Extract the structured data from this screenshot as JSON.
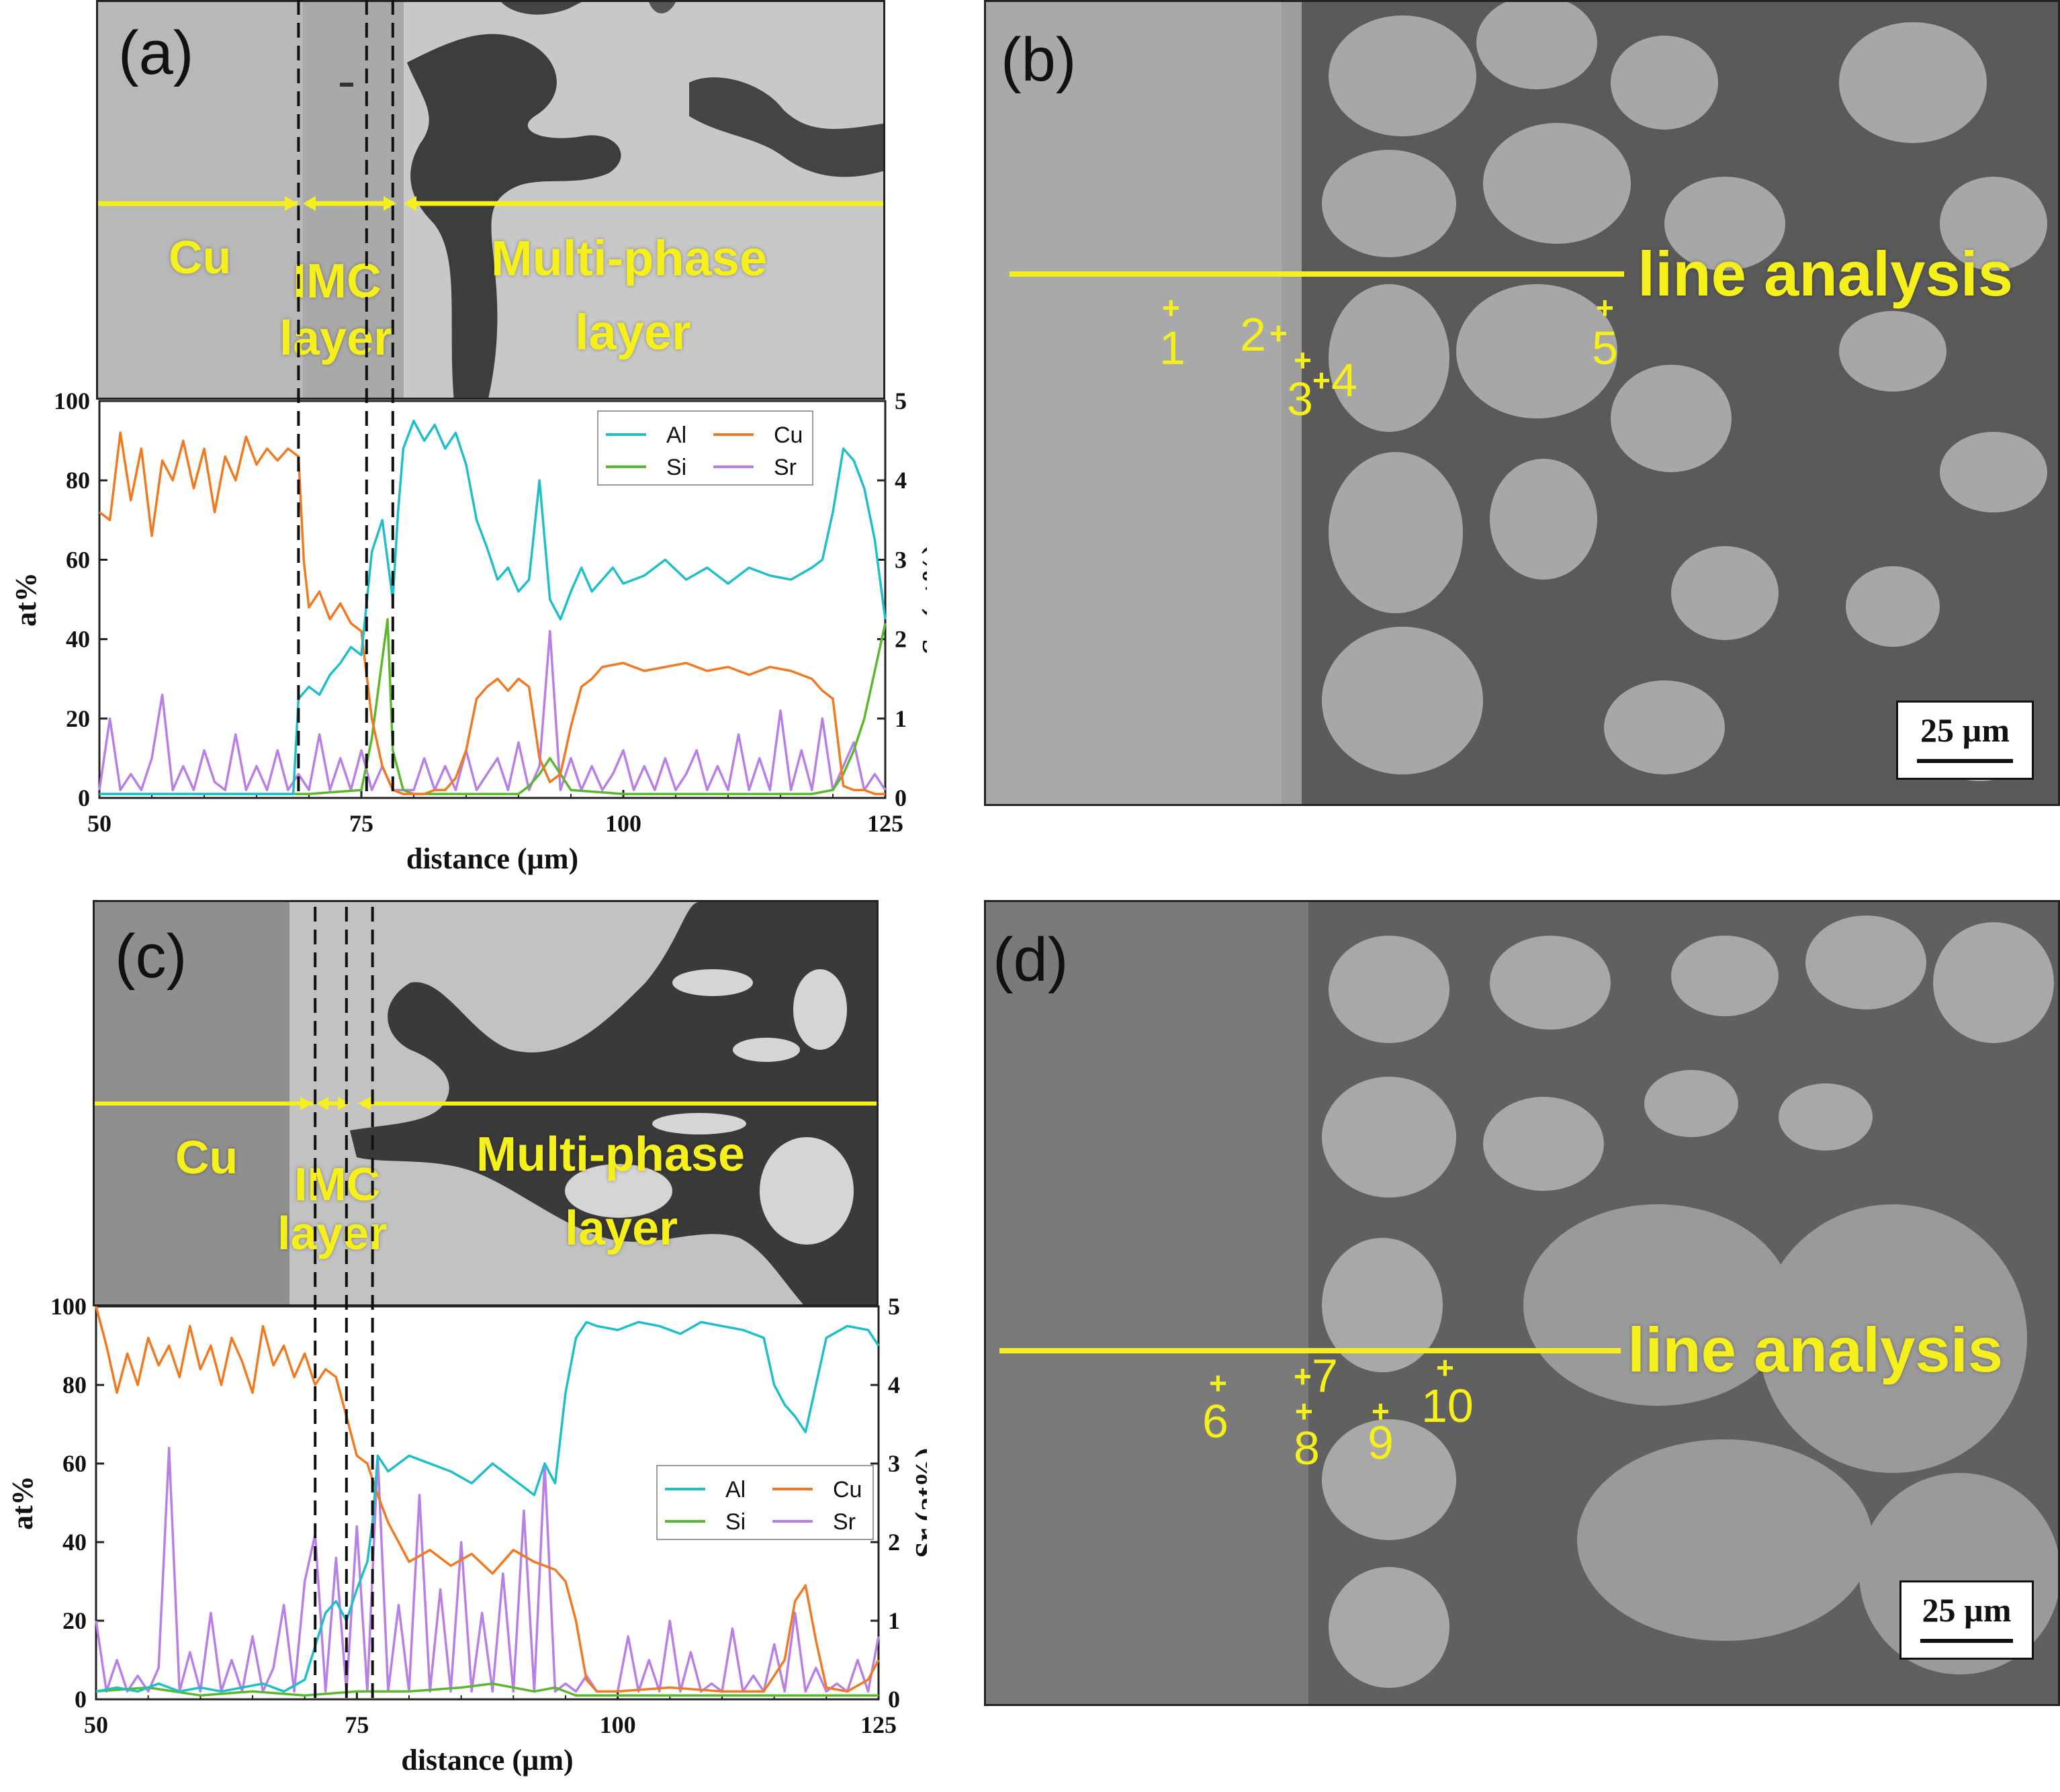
{
  "panels": {
    "a": {
      "tag": "(a)",
      "labels": {
        "cu": "Cu",
        "imc1": "IMC",
        "imc2": "layer",
        "mp1": "Multi-phase",
        "mp2": "layer"
      }
    },
    "b": {
      "tag": "(b)",
      "line_label": "line analysis",
      "points": [
        "1",
        "2",
        "3",
        "4",
        "5"
      ],
      "scalebar": "25 µm"
    },
    "c": {
      "tag": "(c)",
      "labels": {
        "cu": "Cu",
        "imc1": "IMC",
        "imc2": "layer",
        "mp1": "Multi-phase",
        "mp2": "layer"
      }
    },
    "d": {
      "tag": "(d)",
      "line_label": "line analysis",
      "points": [
        "6",
        "7",
        "8",
        "9",
        "10"
      ],
      "scalebar": "25 µm"
    }
  },
  "colors": {
    "Al": "#1fbfc8",
    "Cu": "#f07a22",
    "Si": "#5bb82e",
    "Sr": "#b87fe6",
    "annotation": "#f5ef1c"
  },
  "chart_data": [
    {
      "id": "a",
      "type": "line",
      "xlabel": "distance (µm)",
      "ylabel": "at%",
      "y2label": "Sr (at%)",
      "xlim": [
        50,
        125
      ],
      "ylim": [
        0,
        100
      ],
      "y2lim": [
        0,
        5
      ],
      "xticks": [
        50,
        75,
        100,
        125
      ],
      "yticks": [
        0,
        20,
        40,
        60,
        80,
        100
      ],
      "y2ticks": [
        0,
        1,
        2,
        3,
        4,
        5
      ],
      "legend": [
        "Al",
        "Cu",
        "Si",
        "Sr"
      ],
      "legend_position": "top-right",
      "boundaries": [
        69,
        75.5,
        78
      ],
      "series": [
        {
          "name": "Al",
          "axis": "left",
          "x": [
            50,
            55,
            60,
            65,
            68.5,
            69,
            70,
            71,
            72,
            73,
            74,
            75,
            76,
            77,
            78,
            78.5,
            79,
            80,
            81,
            82,
            83,
            84,
            85,
            86,
            87,
            88,
            89,
            90,
            91,
            92,
            93,
            94,
            95,
            96,
            97,
            98,
            99,
            100,
            102,
            104,
            106,
            108,
            110,
            112,
            114,
            116,
            118,
            119,
            120,
            121,
            122,
            123,
            124,
            125
          ],
          "y": [
            1,
            1,
            1,
            1,
            1,
            25,
            28,
            26,
            31,
            34,
            38,
            36,
            62,
            70,
            50,
            72,
            88,
            95,
            90,
            94,
            88,
            92,
            84,
            70,
            63,
            55,
            58,
            52,
            55,
            80,
            50,
            45,
            52,
            58,
            52,
            55,
            58,
            54,
            56,
            60,
            55,
            58,
            54,
            58,
            56,
            55,
            58,
            60,
            72,
            88,
            85,
            78,
            65,
            45
          ]
        },
        {
          "name": "Cu",
          "axis": "left",
          "x": [
            50,
            51,
            52,
            53,
            54,
            55,
            56,
            57,
            58,
            59,
            60,
            61,
            62,
            63,
            64,
            65,
            66,
            67,
            68,
            69,
            69.5,
            70,
            71,
            72,
            73,
            74,
            75,
            76,
            77,
            78,
            79,
            80,
            81,
            82,
            83,
            84,
            85,
            86,
            87,
            88,
            89,
            90,
            91,
            92,
            93,
            94,
            95,
            96,
            97,
            98,
            100,
            102,
            104,
            106,
            108,
            110,
            112,
            114,
            116,
            118,
            119,
            120,
            121,
            122,
            123,
            124,
            125
          ],
          "y": [
            72,
            70,
            92,
            75,
            88,
            66,
            85,
            80,
            90,
            78,
            88,
            72,
            86,
            80,
            91,
            84,
            88,
            85,
            88,
            86,
            60,
            48,
            52,
            45,
            49,
            44,
            42,
            20,
            8,
            2,
            1,
            1,
            1,
            2,
            2,
            5,
            12,
            25,
            28,
            30,
            27,
            30,
            28,
            10,
            4,
            6,
            18,
            28,
            30,
            33,
            34,
            32,
            33,
            34,
            32,
            33,
            31,
            33,
            32,
            30,
            27,
            25,
            3,
            2,
            2,
            1,
            1
          ]
        },
        {
          "name": "Si",
          "axis": "left",
          "x": [
            50,
            60,
            70,
            75,
            76,
            77,
            77.5,
            78,
            79,
            80,
            90,
            91,
            92,
            93,
            94,
            95,
            100,
            110,
            118,
            120,
            121,
            122,
            123,
            124,
            125
          ],
          "y": [
            1,
            1,
            1,
            2,
            15,
            35,
            45,
            12,
            2,
            1,
            1,
            3,
            6,
            10,
            6,
            2,
            1,
            1,
            1,
            2,
            6,
            12,
            20,
            32,
            44
          ]
        },
        {
          "name": "Sr",
          "axis": "right",
          "x": [
            50,
            51,
            52,
            53,
            54,
            55,
            56,
            57,
            58,
            59,
            60,
            61,
            62,
            63,
            64,
            65,
            66,
            67,
            68,
            69,
            70,
            71,
            72,
            73,
            74,
            75,
            76,
            77,
            78,
            79,
            80,
            81,
            82,
            83,
            84,
            85,
            86,
            87,
            88,
            89,
            90,
            91,
            92,
            93,
            94,
            95,
            96,
            97,
            98,
            99,
            100,
            101,
            102,
            103,
            104,
            105,
            106,
            107,
            108,
            109,
            110,
            111,
            112,
            113,
            114,
            115,
            116,
            117,
            118,
            119,
            120,
            121,
            122,
            123,
            124,
            125
          ],
          "y": [
            0.1,
            1.0,
            0.1,
            0.3,
            0.1,
            0.5,
            1.3,
            0.1,
            0.4,
            0.1,
            0.6,
            0.2,
            0.1,
            0.8,
            0.1,
            0.4,
            0.1,
            0.6,
            0.1,
            0.3,
            0.1,
            0.8,
            0.1,
            0.5,
            0.1,
            0.6,
            0.1,
            0.4,
            0.1,
            0.1,
            0.1,
            0.5,
            0.1,
            0.4,
            0.1,
            0.6,
            0.1,
            0.3,
            0.5,
            0.1,
            0.7,
            0.1,
            0.4,
            2.1,
            0.1,
            0.5,
            0.1,
            0.4,
            0.1,
            0.3,
            0.6,
            0.1,
            0.4,
            0.1,
            0.5,
            0.1,
            0.3,
            0.6,
            0.1,
            0.4,
            0.1,
            0.8,
            0.1,
            0.5,
            0.1,
            1.1,
            0.1,
            0.6,
            0.1,
            1.0,
            0.1,
            0.4,
            0.7,
            0.1,
            0.3,
            0.1
          ]
        }
      ]
    },
    {
      "id": "c",
      "type": "line",
      "xlabel": "distance (µm)",
      "ylabel": "at%",
      "y2label": "Sr (at%)",
      "xlim": [
        50,
        125
      ],
      "ylim": [
        0,
        100
      ],
      "y2lim": [
        0,
        5
      ],
      "xticks": [
        50,
        75,
        100,
        125
      ],
      "yticks": [
        0,
        20,
        40,
        60,
        80,
        100
      ],
      "y2ticks": [
        0,
        1,
        2,
        3,
        4,
        5
      ],
      "legend": [
        "Al",
        "Cu",
        "Si",
        "Sr"
      ],
      "legend_position": "right",
      "boundaries": [
        71,
        74,
        76.5
      ],
      "series": [
        {
          "name": "Al",
          "axis": "left",
          "x": [
            50,
            52,
            54,
            56,
            58,
            60,
            62,
            64,
            66,
            68,
            70,
            72,
            73,
            74,
            75,
            76,
            76.5,
            77,
            78,
            80,
            82,
            84,
            86,
            88,
            90,
            92,
            93,
            94,
            95,
            96,
            97,
            98,
            100,
            102,
            104,
            106,
            108,
            110,
            112,
            114,
            115,
            116,
            117,
            118,
            119,
            120,
            122,
            124,
            125
          ],
          "y": [
            2,
            3,
            2,
            4,
            2,
            3,
            2,
            3,
            4,
            2,
            5,
            22,
            25,
            20,
            28,
            35,
            45,
            62,
            58,
            62,
            60,
            58,
            55,
            60,
            56,
            52,
            60,
            55,
            78,
            92,
            96,
            95,
            94,
            96,
            95,
            93,
            96,
            95,
            94,
            92,
            80,
            75,
            72,
            68,
            80,
            92,
            95,
            94,
            90
          ]
        },
        {
          "name": "Cu",
          "axis": "left",
          "x": [
            50,
            51,
            52,
            53,
            54,
            55,
            56,
            57,
            58,
            59,
            60,
            61,
            62,
            63,
            64,
            65,
            66,
            67,
            68,
            69,
            70,
            71,
            72,
            73,
            74,
            75,
            76,
            77,
            78,
            79,
            80,
            82,
            84,
            86,
            88,
            90,
            92,
            94,
            95,
            96,
            97,
            98,
            100,
            105,
            110,
            114,
            116,
            117,
            118,
            119,
            120,
            122,
            124,
            125
          ],
          "y": [
            100,
            90,
            78,
            88,
            80,
            92,
            85,
            90,
            82,
            95,
            84,
            90,
            80,
            92,
            86,
            78,
            95,
            85,
            90,
            82,
            88,
            80,
            84,
            82,
            72,
            62,
            60,
            52,
            45,
            40,
            35,
            38,
            34,
            37,
            32,
            38,
            35,
            33,
            30,
            20,
            5,
            2,
            2,
            3,
            2,
            2,
            10,
            25,
            29,
            15,
            3,
            2,
            5,
            10
          ]
        },
        {
          "name": "Si",
          "axis": "left",
          "x": [
            50,
            55,
            60,
            65,
            70,
            75,
            80,
            85,
            88,
            90,
            92,
            94,
            96,
            100,
            110,
            120,
            125
          ],
          "y": [
            2,
            3,
            1,
            2,
            1,
            2,
            2,
            3,
            4,
            3,
            2,
            3,
            1,
            1,
            1,
            1,
            1
          ]
        },
        {
          "name": "Sr",
          "axis": "right",
          "x": [
            50,
            51,
            52,
            53,
            54,
            55,
            56,
            57,
            58,
            59,
            60,
            61,
            62,
            63,
            64,
            65,
            66,
            67,
            68,
            69,
            70,
            71,
            72,
            73,
            74,
            75,
            76,
            77,
            78,
            79,
            80,
            81,
            82,
            83,
            84,
            85,
            86,
            87,
            88,
            89,
            90,
            91,
            92,
            93,
            94,
            95,
            96,
            97,
            98,
            99,
            100,
            101,
            102,
            103,
            104,
            105,
            106,
            107,
            108,
            109,
            110,
            111,
            112,
            113,
            114,
            115,
            116,
            117,
            118,
            119,
            120,
            121,
            122,
            123,
            124,
            125
          ],
          "y": [
            1.0,
            0.1,
            0.5,
            0.1,
            0.3,
            0.1,
            0.4,
            3.2,
            0.1,
            0.6,
            0.1,
            1.1,
            0.1,
            0.5,
            0.1,
            0.8,
            0.1,
            0.4,
            1.2,
            0.1,
            1.5,
            2.1,
            0.1,
            1.8,
            0.1,
            2.2,
            0.1,
            3.1,
            0.1,
            1.2,
            0.1,
            2.6,
            0.1,
            1.4,
            0.1,
            2.0,
            0.1,
            1.1,
            0.1,
            1.6,
            0.1,
            2.4,
            0.1,
            3.0,
            0.1,
            0.2,
            0.1,
            0.3,
            0.1,
            0.1,
            0.1,
            0.8,
            0.1,
            0.5,
            0.1,
            1.0,
            0.1,
            0.6,
            0.1,
            0.2,
            0.1,
            0.9,
            0.1,
            0.3,
            0.1,
            0.7,
            0.1,
            1.1,
            0.1,
            0.4,
            0.1,
            0.2,
            0.1,
            0.5,
            0.1,
            0.8
          ]
        }
      ]
    }
  ]
}
